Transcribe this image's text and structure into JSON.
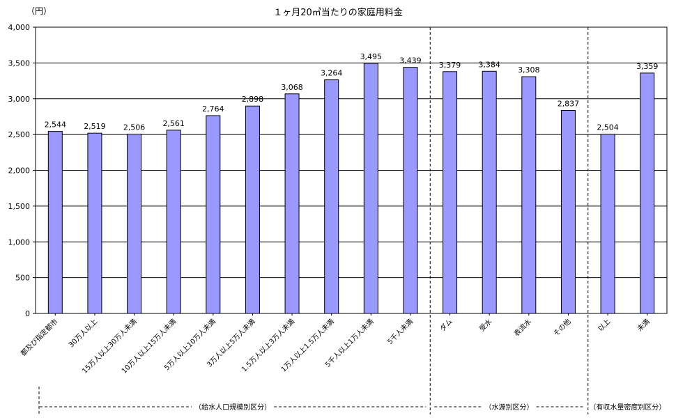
{
  "chart_data": {
    "type": "bar",
    "title": "１ヶ月20㎥当たりの家庭用料金",
    "y_unit": "（円）",
    "ylim": [
      0,
      4000
    ],
    "yticks": [
      0,
      500,
      1000,
      1500,
      2000,
      2500,
      3000,
      3500,
      4000
    ],
    "ytick_labels": [
      "0",
      "500",
      "1,000",
      "1,500",
      "2,000",
      "2,500",
      "3,000",
      "3,500",
      "4,000"
    ],
    "grid": true,
    "bar_color": "#9999ff",
    "categories": [
      "都及び指定都市",
      "30万人以上",
      "15万人以上30万人未満",
      "10万人以上15万人未満",
      "5万人以上10万人未満",
      "3万人以上5万人未満",
      "1.5万人以上3万人未満",
      "1万人以上1.5万人未満",
      "5千人以上1万人未満",
      "5千人未満",
      "ダム",
      "受水",
      "表流水",
      "その他",
      "以上",
      "未満"
    ],
    "values": [
      2544,
      2519,
      2506,
      2561,
      2764,
      2898,
      3068,
      3264,
      3495,
      3439,
      3379,
      3384,
      3308,
      2837,
      2504,
      3359
    ],
    "value_labels": [
      "2,544",
      "2,519",
      "2,506",
      "2,561",
      "2,764",
      "2,898",
      "3,068",
      "3,264",
      "3,495",
      "3,439",
      "3,379",
      "3,384",
      "3,308",
      "2,837",
      "2,504",
      "3,359"
    ],
    "groups": [
      {
        "label": "（給水人口規模別区分）",
        "start": 0,
        "end": 9
      },
      {
        "label": "（水源別区分）",
        "start": 10,
        "end": 13
      },
      {
        "label": "（有収水量密度別区分）",
        "start": 14,
        "end": 15
      }
    ]
  }
}
